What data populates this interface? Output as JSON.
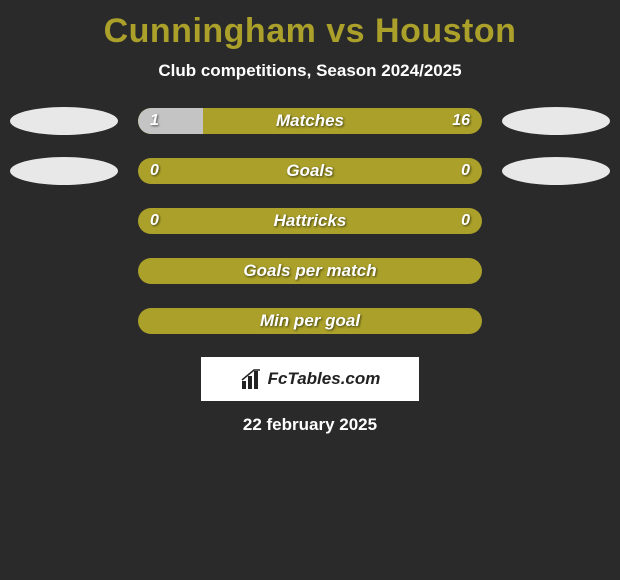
{
  "title": "Cunningham vs Houston",
  "subtitle": "Club competitions, Season 2024/2025",
  "accent_color": "#aaa02a",
  "neutral_fill": "#c4c4c4",
  "background_color": "#2a2a2a",
  "rows": [
    {
      "label": "Matches",
      "left": "1",
      "right": "16",
      "fill_left_pct": 19,
      "show_ovals": true
    },
    {
      "label": "Goals",
      "left": "0",
      "right": "0",
      "fill_left_pct": 0,
      "show_ovals": true
    },
    {
      "label": "Hattricks",
      "left": "0",
      "right": "0",
      "fill_left_pct": 0,
      "show_ovals": false
    },
    {
      "label": "Goals per match",
      "left": "",
      "right": "",
      "fill_left_pct": 0,
      "show_ovals": false
    },
    {
      "label": "Min per goal",
      "left": "",
      "right": "",
      "fill_left_pct": 0,
      "show_ovals": false
    }
  ],
  "logo_text": "FcTables.com",
  "date": "22 february 2025"
}
